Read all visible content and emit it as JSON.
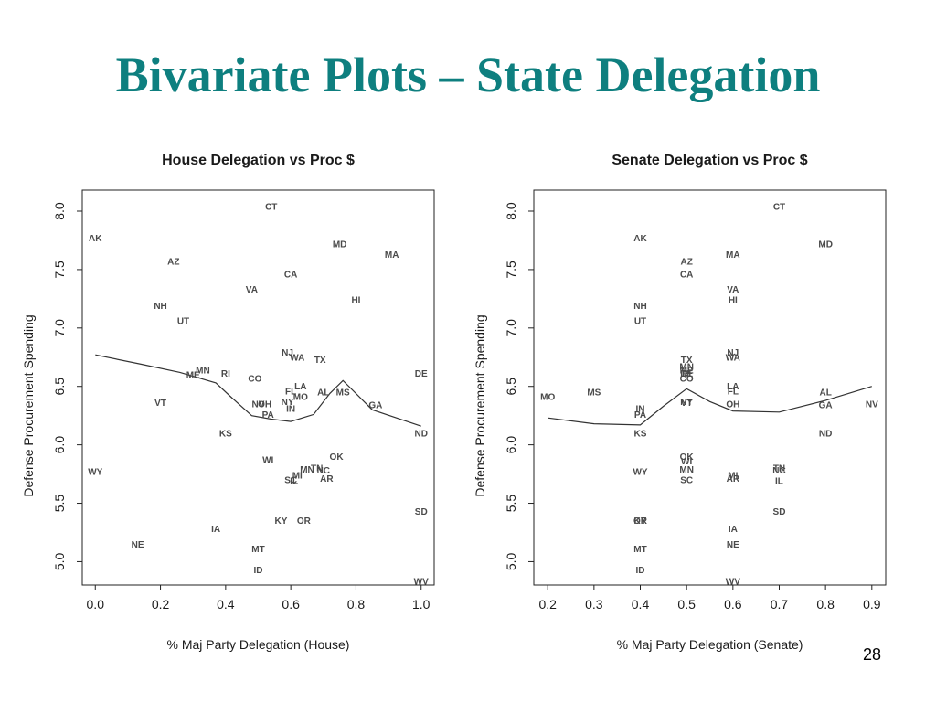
{
  "slide": {
    "title": "Bivariate Plots – State Delegation",
    "page_number": "28"
  },
  "chart_data": [
    {
      "type": "scatter",
      "title": "House Delegation vs Proc $",
      "xlabel": "% Maj Party Delegation (House)",
      "ylabel": "Defense Procurement Spending",
      "xlim": [
        -0.04,
        1.04
      ],
      "ylim": [
        4.8,
        8.18
      ],
      "xticks": [
        "0.0",
        "0.2",
        "0.4",
        "0.6",
        "0.8",
        "1.0"
      ],
      "yticks": [
        "5.0",
        "5.5",
        "6.0",
        "6.5",
        "7.0",
        "7.5",
        "8.0"
      ],
      "point_style": "state-abbreviation-labels",
      "points": [
        {
          "label": "CT",
          "x": 0.54,
          "y": 8.04
        },
        {
          "label": "AK",
          "x": 0.0,
          "y": 7.77
        },
        {
          "label": "MD",
          "x": 0.75,
          "y": 7.72
        },
        {
          "label": "MA",
          "x": 0.91,
          "y": 7.63
        },
        {
          "label": "AZ",
          "x": 0.24,
          "y": 7.57
        },
        {
          "label": "CA",
          "x": 0.6,
          "y": 7.46
        },
        {
          "label": "VA",
          "x": 0.48,
          "y": 7.33
        },
        {
          "label": "HI",
          "x": 0.8,
          "y": 7.24
        },
        {
          "label": "NH",
          "x": 0.2,
          "y": 7.19
        },
        {
          "label": "UT",
          "x": 0.27,
          "y": 7.06
        },
        {
          "label": "NJ",
          "x": 0.59,
          "y": 6.79
        },
        {
          "label": "WA",
          "x": 0.62,
          "y": 6.75
        },
        {
          "label": "TX",
          "x": 0.69,
          "y": 6.73
        },
        {
          "label": "ME",
          "x": 0.3,
          "y": 6.6
        },
        {
          "label": "MN",
          "x": 0.33,
          "y": 6.64
        },
        {
          "label": "RI",
          "x": 0.4,
          "y": 6.61
        },
        {
          "label": "CO",
          "x": 0.49,
          "y": 6.57
        },
        {
          "label": "DE",
          "x": 1.0,
          "y": 6.61
        },
        {
          "label": "LA",
          "x": 0.63,
          "y": 6.5
        },
        {
          "label": "FL",
          "x": 0.6,
          "y": 6.46
        },
        {
          "label": "AL",
          "x": 0.7,
          "y": 6.45
        },
        {
          "label": "MS",
          "x": 0.76,
          "y": 6.45
        },
        {
          "label": "MO",
          "x": 0.63,
          "y": 6.41
        },
        {
          "label": "VT",
          "x": 0.2,
          "y": 6.36
        },
        {
          "label": "NV",
          "x": 0.5,
          "y": 6.35
        },
        {
          "label": "OH",
          "x": 0.52,
          "y": 6.35
        },
        {
          "label": "NY",
          "x": 0.59,
          "y": 6.37
        },
        {
          "label": "IN",
          "x": 0.6,
          "y": 6.31
        },
        {
          "label": "GA",
          "x": 0.86,
          "y": 6.34
        },
        {
          "label": "PA",
          "x": 0.53,
          "y": 6.26
        },
        {
          "label": "KS",
          "x": 0.4,
          "y": 6.1
        },
        {
          "label": "ND",
          "x": 1.0,
          "y": 6.1
        },
        {
          "label": "OK",
          "x": 0.74,
          "y": 5.9
        },
        {
          "label": "WI",
          "x": 0.53,
          "y": 5.87
        },
        {
          "label": "MN",
          "x": 0.65,
          "y": 5.79
        },
        {
          "label": "TN",
          "x": 0.68,
          "y": 5.8
        },
        {
          "label": "NC",
          "x": 0.7,
          "y": 5.78
        },
        {
          "label": "MI",
          "x": 0.62,
          "y": 5.74
        },
        {
          "label": "SC",
          "x": 0.6,
          "y": 5.7
        },
        {
          "label": "IL",
          "x": 0.61,
          "y": 5.69
        },
        {
          "label": "AR",
          "x": 0.71,
          "y": 5.71
        },
        {
          "label": "WY",
          "x": 0.0,
          "y": 5.77
        },
        {
          "label": "SD",
          "x": 1.0,
          "y": 5.43
        },
        {
          "label": "KY",
          "x": 0.57,
          "y": 5.35
        },
        {
          "label": "OR",
          "x": 0.64,
          "y": 5.35
        },
        {
          "label": "IA",
          "x": 0.37,
          "y": 5.28
        },
        {
          "label": "NE",
          "x": 0.13,
          "y": 5.15
        },
        {
          "label": "MT",
          "x": 0.5,
          "y": 5.11
        },
        {
          "label": "ID",
          "x": 0.5,
          "y": 4.93
        },
        {
          "label": "WV",
          "x": 1.0,
          "y": 4.83
        }
      ],
      "smooth_line": {
        "x": [
          0.0,
          0.14,
          0.26,
          0.37,
          0.42,
          0.48,
          0.54,
          0.6,
          0.67,
          0.72,
          0.76,
          0.85,
          1.0
        ],
        "y": [
          6.77,
          6.69,
          6.62,
          6.53,
          6.4,
          6.25,
          6.22,
          6.2,
          6.26,
          6.44,
          6.55,
          6.3,
          6.16
        ]
      }
    },
    {
      "type": "scatter",
      "title": "Senate Delegation vs Proc $",
      "xlabel": "% Maj Party Delegation (Senate)",
      "ylabel": "Defense Procurement Spending",
      "xlim": [
        0.17,
        0.93
      ],
      "ylim": [
        4.8,
        8.18
      ],
      "xticks": [
        "0.2",
        "0.3",
        "0.4",
        "0.5",
        "0.6",
        "0.7",
        "0.8",
        "0.9"
      ],
      "yticks": [
        "5.0",
        "5.5",
        "6.0",
        "6.5",
        "7.0",
        "7.5",
        "8.0"
      ],
      "point_style": "state-abbreviation-labels",
      "points": [
        {
          "label": "CT",
          "x": 0.7,
          "y": 8.04
        },
        {
          "label": "AK",
          "x": 0.4,
          "y": 7.77
        },
        {
          "label": "MD",
          "x": 0.8,
          "y": 7.72
        },
        {
          "label": "MA",
          "x": 0.6,
          "y": 7.63
        },
        {
          "label": "AZ",
          "x": 0.5,
          "y": 7.57
        },
        {
          "label": "CA",
          "x": 0.5,
          "y": 7.46
        },
        {
          "label": "VA",
          "x": 0.6,
          "y": 7.33
        },
        {
          "label": "HI",
          "x": 0.6,
          "y": 7.24
        },
        {
          "label": "NH",
          "x": 0.4,
          "y": 7.19
        },
        {
          "label": "UT",
          "x": 0.4,
          "y": 7.06
        },
        {
          "label": "NJ",
          "x": 0.6,
          "y": 6.79
        },
        {
          "label": "WA",
          "x": 0.6,
          "y": 6.75
        },
        {
          "label": "TX",
          "x": 0.5,
          "y": 6.73
        },
        {
          "label": "MN",
          "x": 0.5,
          "y": 6.67
        },
        {
          "label": "ME",
          "x": 0.5,
          "y": 6.64
        },
        {
          "label": "RI",
          "x": 0.5,
          "y": 6.61
        },
        {
          "label": "DE",
          "x": 0.5,
          "y": 6.61
        },
        {
          "label": "CO",
          "x": 0.5,
          "y": 6.57
        },
        {
          "label": "LA",
          "x": 0.6,
          "y": 6.5
        },
        {
          "label": "FL",
          "x": 0.6,
          "y": 6.46
        },
        {
          "label": "MO",
          "x": 0.2,
          "y": 6.41
        },
        {
          "label": "MS",
          "x": 0.3,
          "y": 6.45
        },
        {
          "label": "AL",
          "x": 0.8,
          "y": 6.45
        },
        {
          "label": "NY",
          "x": 0.5,
          "y": 6.37
        },
        {
          "label": "VT",
          "x": 0.5,
          "y": 6.36
        },
        {
          "label": "OH",
          "x": 0.6,
          "y": 6.35
        },
        {
          "label": "GA",
          "x": 0.8,
          "y": 6.34
        },
        {
          "label": "NV",
          "x": 0.9,
          "y": 6.35
        },
        {
          "label": "IN",
          "x": 0.4,
          "y": 6.31
        },
        {
          "label": "PA",
          "x": 0.4,
          "y": 6.26
        },
        {
          "label": "KS",
          "x": 0.4,
          "y": 6.1
        },
        {
          "label": "ND",
          "x": 0.8,
          "y": 6.1
        },
        {
          "label": "OK",
          "x": 0.5,
          "y": 5.9
        },
        {
          "label": "WI",
          "x": 0.5,
          "y": 5.86
        },
        {
          "label": "TN",
          "x": 0.7,
          "y": 5.8
        },
        {
          "label": "MN",
          "x": 0.5,
          "y": 5.79
        },
        {
          "label": "NC",
          "x": 0.7,
          "y": 5.78
        },
        {
          "label": "WY",
          "x": 0.4,
          "y": 5.77
        },
        {
          "label": "MI",
          "x": 0.6,
          "y": 5.74
        },
        {
          "label": "AR",
          "x": 0.6,
          "y": 5.71
        },
        {
          "label": "SC",
          "x": 0.5,
          "y": 5.7
        },
        {
          "label": "IL",
          "x": 0.7,
          "y": 5.69
        },
        {
          "label": "SD",
          "x": 0.7,
          "y": 5.43
        },
        {
          "label": "KY",
          "x": 0.4,
          "y": 5.35
        },
        {
          "label": "OR",
          "x": 0.4,
          "y": 5.35
        },
        {
          "label": "IA",
          "x": 0.6,
          "y": 5.28
        },
        {
          "label": "NE",
          "x": 0.6,
          "y": 5.15
        },
        {
          "label": "MT",
          "x": 0.4,
          "y": 5.11
        },
        {
          "label": "ID",
          "x": 0.4,
          "y": 4.93
        },
        {
          "label": "WV",
          "x": 0.6,
          "y": 4.83
        }
      ],
      "smooth_line": {
        "x": [
          0.2,
          0.3,
          0.4,
          0.45,
          0.5,
          0.55,
          0.6,
          0.7,
          0.8,
          0.9
        ],
        "y": [
          6.23,
          6.18,
          6.17,
          6.33,
          6.48,
          6.37,
          6.29,
          6.28,
          6.38,
          6.5
        ]
      }
    }
  ]
}
